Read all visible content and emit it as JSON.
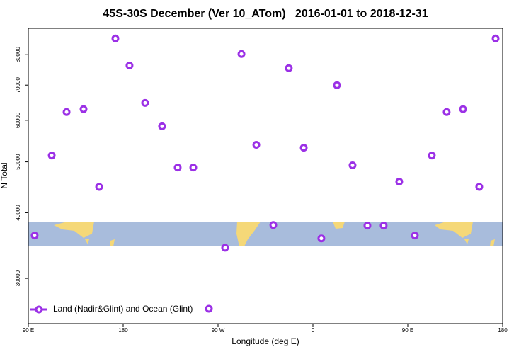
{
  "chart_data": {
    "type": "scatter",
    "title": "45S-30S December (Ver 10_ATom)   2016-01-01 to 2018-12-31",
    "x_label": "Longitude (deg E)",
    "y_label": "N Total",
    "log_y": true,
    "xlim": [
      90,
      540
    ],
    "ylim": [
      24600,
      89800
    ],
    "xticks": [
      {
        "value": 90,
        "label": "90 E"
      },
      {
        "value": 180,
        "label": "180"
      },
      {
        "value": 270,
        "label": "90 W"
      },
      {
        "value": 360,
        "label": "0"
      },
      {
        "value": 450,
        "label": "90 E"
      },
      {
        "value": 540,
        "label": "180"
      }
    ],
    "yticks": [
      30000,
      40000,
      50000,
      60000,
      70000,
      80000
    ],
    "legend": "bottom-left",
    "series": [
      {
        "name": "Land (Nadir&Glint) and Ocean (Glint)",
        "color": "#9b30e6",
        "x": [
          96,
          112.2,
          126.3,
          142.4,
          157.2,
          172.6,
          186,
          200.8,
          216.9,
          231.7,
          246.5,
          261.3,
          276.7,
          292.2,
          306.3,
          322.4,
          337.1,
          351.3,
          368,
          382.8,
          397.6,
          411.7,
          427.1,
          441.9,
          456.7,
          472.8,
          486.9,
          502.4,
          517.8,
          533.3
        ],
        "values": [
          36200,
          51400,
          62200,
          63000,
          44800,
          85900,
          76300,
          64750,
          58430,
          48770,
          48770,
          26260,
          34310,
          80250,
          53880,
          37900,
          75400,
          53200,
          35740,
          69980,
          49240,
          37800,
          37800,
          45840,
          36200,
          51400,
          62200,
          63000,
          44800,
          85900
        ]
      }
    ]
  }
}
